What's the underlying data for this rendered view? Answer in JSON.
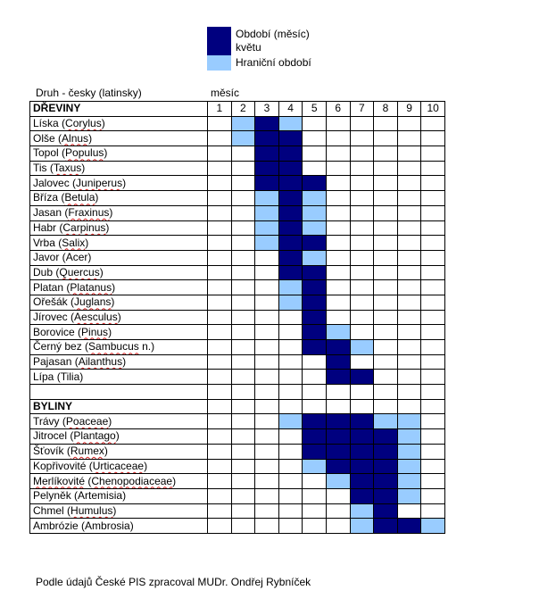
{
  "colors": {
    "bloom": "#00007f",
    "border_period": "#99ccff",
    "none": "#ffffff"
  },
  "legend": [
    {
      "label_lines": [
        "Období (měsíc)",
        "květu"
      ],
      "color": "#00007f",
      "icon": "dark-blue-swatch"
    },
    {
      "label_lines": [
        "Hraniční období"
      ],
      "color": "#99ccff",
      "icon": "light-blue-swatch"
    }
  ],
  "table": {
    "header_left": "Druh - česky (latinsky)",
    "header_month": "měsíc",
    "months": [
      "1",
      "2",
      "3",
      "4",
      "5",
      "6",
      "7",
      "8",
      "9",
      "10"
    ],
    "sections": [
      {
        "title": "DŘEVINY",
        "rows": [
          {
            "cz": "Líska",
            "lat": "Corylus",
            "cells": [
              0,
              2,
              1,
              2,
              0,
              0,
              0,
              0,
              0,
              0
            ]
          },
          {
            "cz": "Olše",
            "lat": "Alnus",
            "cells": [
              0,
              2,
              1,
              1,
              0,
              0,
              0,
              0,
              0,
              0
            ]
          },
          {
            "cz": "Topol",
            "lat": "Populus",
            "cells": [
              0,
              0,
              1,
              1,
              0,
              0,
              0,
              0,
              0,
              0
            ]
          },
          {
            "cz": "Tis",
            "lat": "Taxus",
            "cells": [
              0,
              0,
              1,
              1,
              0,
              0,
              0,
              0,
              0,
              0
            ]
          },
          {
            "cz": "Jalovec",
            "lat": "Juniperus",
            "cells": [
              0,
              0,
              1,
              1,
              1,
              0,
              0,
              0,
              0,
              0
            ]
          },
          {
            "cz": "Bříza",
            "lat": "Betula",
            "cells": [
              0,
              0,
              2,
              1,
              2,
              0,
              0,
              0,
              0,
              0
            ]
          },
          {
            "cz": "Jasan",
            "lat": "Fraxinus",
            "cells": [
              0,
              0,
              2,
              1,
              2,
              0,
              0,
              0,
              0,
              0
            ]
          },
          {
            "cz": "Habr",
            "lat": "Carpinus",
            "cells": [
              0,
              0,
              2,
              1,
              2,
              0,
              0,
              0,
              0,
              0
            ]
          },
          {
            "cz": "Vrba",
            "lat": "Salix",
            "cells": [
              0,
              0,
              2,
              1,
              1,
              0,
              0,
              0,
              0,
              0
            ]
          },
          {
            "cz": "Javor",
            "lat": "Acer",
            "lat_plain": true,
            "cells": [
              0,
              0,
              0,
              1,
              2,
              0,
              0,
              0,
              0,
              0
            ]
          },
          {
            "cz": "Dub",
            "lat": "Quercus",
            "cells": [
              0,
              0,
              0,
              1,
              1,
              0,
              0,
              0,
              0,
              0
            ]
          },
          {
            "cz": "Platan",
            "lat": "Platanus",
            "cells": [
              0,
              0,
              0,
              2,
              1,
              0,
              0,
              0,
              0,
              0
            ]
          },
          {
            "cz": "Ořešák",
            "lat": "Juglans",
            "cells": [
              0,
              0,
              0,
              2,
              1,
              0,
              0,
              0,
              0,
              0
            ]
          },
          {
            "cz": "Jírovec",
            "lat": "Aesculus",
            "cells": [
              0,
              0,
              0,
              0,
              1,
              0,
              0,
              0,
              0,
              0
            ]
          },
          {
            "cz": "Borovice",
            "lat": "Pinus",
            "cells": [
              0,
              0,
              0,
              0,
              1,
              2,
              0,
              0,
              0,
              0
            ]
          },
          {
            "cz": "Černý bez",
            "lat": "Sambucus",
            "suffix": " n.)",
            "cells": [
              0,
              0,
              0,
              0,
              1,
              1,
              2,
              0,
              0,
              0
            ]
          },
          {
            "cz": "Pajasan",
            "lat": "Ailanthus",
            "cells": [
              0,
              0,
              0,
              0,
              0,
              1,
              0,
              0,
              0,
              0
            ]
          },
          {
            "cz": "Lípa",
            "lat": "Tilia",
            "lat_plain": true,
            "cells": [
              0,
              0,
              0,
              0,
              0,
              1,
              1,
              0,
              0,
              0
            ]
          }
        ]
      },
      {
        "title": "BYLINY",
        "rows": [
          {
            "cz": "Trávy",
            "lat": "Poaceae",
            "cells": [
              0,
              0,
              0,
              2,
              1,
              1,
              1,
              2,
              2,
              0
            ]
          },
          {
            "cz": "Jitrocel",
            "lat": "Plantago",
            "cells": [
              0,
              0,
              0,
              0,
              1,
              1,
              1,
              1,
              2,
              0
            ]
          },
          {
            "cz": "Šťovík",
            "lat": "Rumex",
            "cells": [
              0,
              0,
              0,
              0,
              1,
              1,
              1,
              1,
              2,
              0
            ]
          },
          {
            "cz": "Kopřivovité",
            "lat": "Urticaceae",
            "cells": [
              0,
              0,
              0,
              0,
              2,
              1,
              1,
              1,
              2,
              0
            ]
          },
          {
            "cz": "Merlíkovité",
            "lat": "Chenopodiaceae",
            "cz_squiggle": true,
            "cells": [
              0,
              0,
              0,
              0,
              0,
              2,
              1,
              1,
              2,
              0
            ]
          },
          {
            "cz": "Pelyněk",
            "lat": "Artemisia",
            "lat_plain": true,
            "cells": [
              0,
              0,
              0,
              0,
              0,
              0,
              1,
              1,
              2,
              0
            ]
          },
          {
            "cz": "Chmel",
            "lat": "Humulus",
            "cells": [
              0,
              0,
              0,
              0,
              0,
              0,
              2,
              1,
              0,
              0
            ]
          },
          {
            "cz": "Ambrózie",
            "lat": "Ambrosia",
            "lat_plain": true,
            "cells": [
              0,
              0,
              0,
              0,
              0,
              0,
              2,
              1,
              1,
              2
            ]
          }
        ]
      }
    ]
  },
  "footer": "Podle údajů České PIS zpracoval MUDr. Ondřej Rybníček"
}
